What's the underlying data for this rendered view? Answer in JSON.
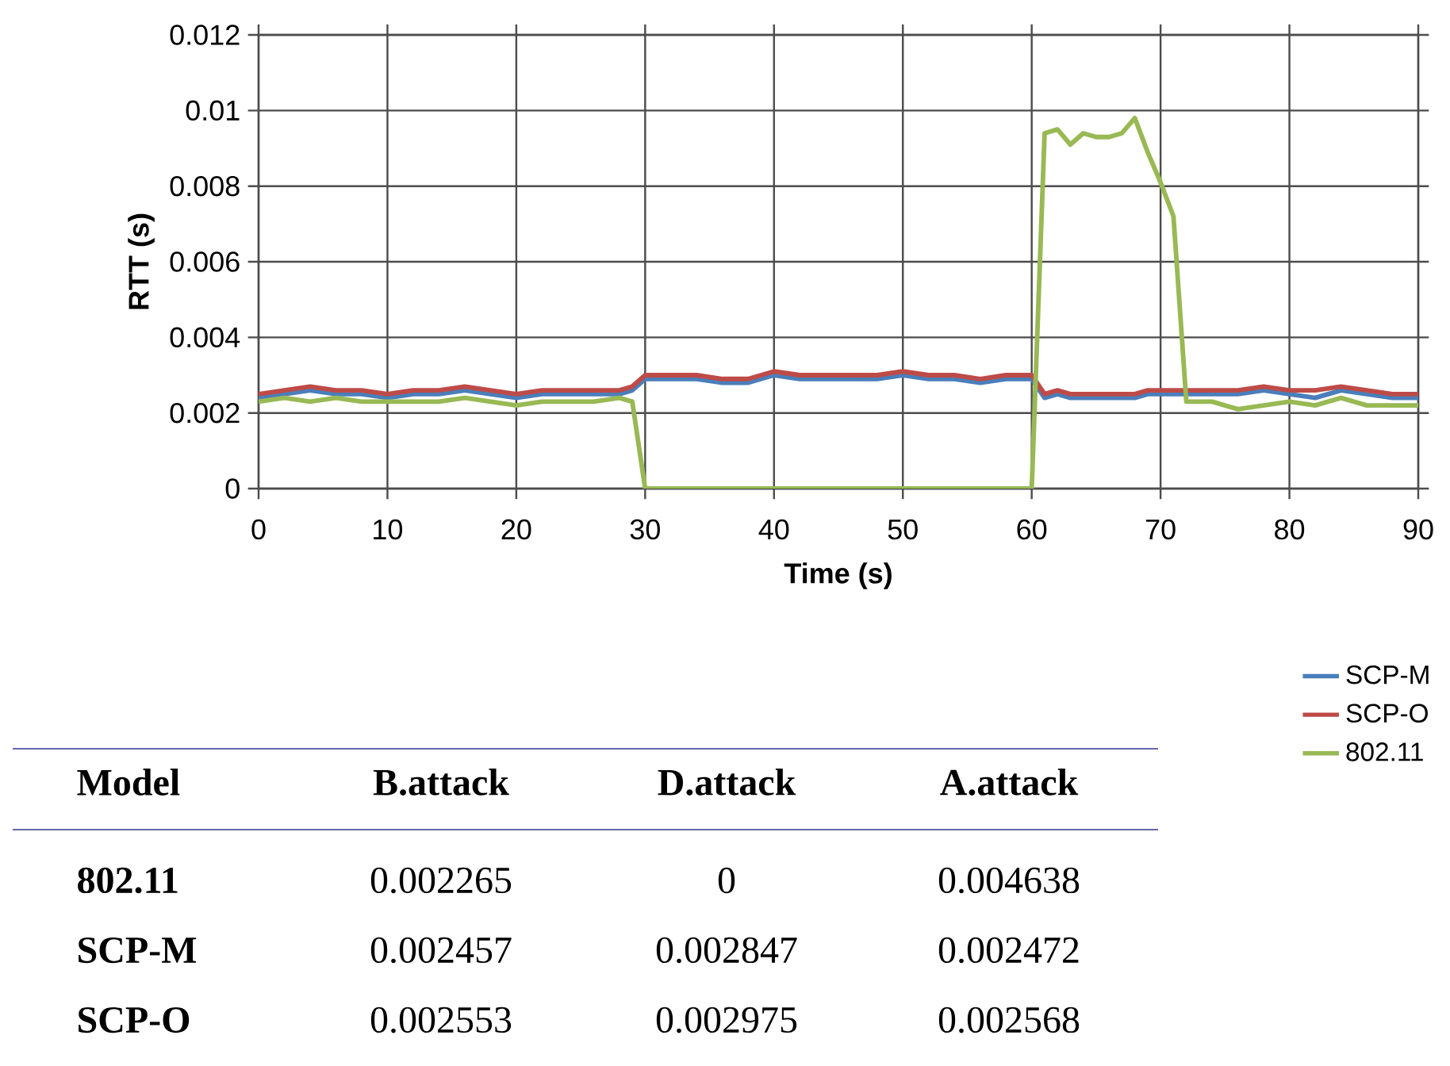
{
  "chart_data": [
    {
      "type": "line",
      "xlabel": "Time (s)",
      "ylabel": "RTT (s)",
      "x": [
        0,
        2,
        4,
        6,
        8,
        10,
        12,
        14,
        16,
        18,
        20,
        22,
        24,
        26,
        28,
        29,
        30,
        32,
        34,
        36,
        38,
        40,
        42,
        44,
        46,
        48,
        50,
        52,
        54,
        56,
        58,
        60,
        61,
        62,
        63,
        64,
        65,
        66,
        67,
        68,
        69,
        70,
        71,
        72,
        74,
        76,
        78,
        80,
        82,
        84,
        86,
        88,
        90
      ],
      "series": [
        {
          "name": "SCP-M",
          "color": "#4a7ebb",
          "values": [
            0.0024,
            0.0025,
            0.0026,
            0.0025,
            0.0025,
            0.0024,
            0.0025,
            0.0025,
            0.0026,
            0.0025,
            0.0024,
            0.0025,
            0.0025,
            0.0025,
            0.0025,
            0.0026,
            0.0029,
            0.0029,
            0.0029,
            0.0028,
            0.0028,
            0.003,
            0.0029,
            0.0029,
            0.0029,
            0.0029,
            0.003,
            0.0029,
            0.0029,
            0.0028,
            0.0029,
            0.0029,
            0.0024,
            0.0025,
            0.0024,
            0.0024,
            0.0024,
            0.0024,
            0.0024,
            0.0024,
            0.0025,
            0.0025,
            0.0025,
            0.0025,
            0.0025,
            0.0025,
            0.0026,
            0.0025,
            0.0024,
            0.0026,
            0.0025,
            0.0024,
            0.0024
          ]
        },
        {
          "name": "SCP-O",
          "color": "#be4b48",
          "values": [
            0.0025,
            0.0026,
            0.0027,
            0.0026,
            0.0026,
            0.0025,
            0.0026,
            0.0026,
            0.0027,
            0.0026,
            0.0025,
            0.0026,
            0.0026,
            0.0026,
            0.0026,
            0.0027,
            0.003,
            0.003,
            0.003,
            0.0029,
            0.0029,
            0.0031,
            0.003,
            0.003,
            0.003,
            0.003,
            0.0031,
            0.003,
            0.003,
            0.0029,
            0.003,
            0.003,
            0.0025,
            0.0026,
            0.0025,
            0.0025,
            0.0025,
            0.0025,
            0.0025,
            0.0025,
            0.0026,
            0.0026,
            0.0026,
            0.0026,
            0.0026,
            0.0026,
            0.0027,
            0.0026,
            0.0026,
            0.0027,
            0.0026,
            0.0025,
            0.0025
          ]
        },
        {
          "name": "802.11",
          "color": "#98b954",
          "values": [
            0.0023,
            0.0024,
            0.0023,
            0.0024,
            0.0023,
            0.0023,
            0.0023,
            0.0023,
            0.0024,
            0.0023,
            0.0022,
            0.0023,
            0.0023,
            0.0023,
            0.0024,
            0.0023,
            0,
            0,
            0,
            0,
            0,
            0,
            0,
            0,
            0,
            0,
            0,
            0,
            0,
            0,
            0,
            0,
            0.0094,
            0.0095,
            0.0091,
            0.0094,
            0.0093,
            0.0093,
            0.0094,
            0.0098,
            0.0089,
            0.0081,
            0.0072,
            0.0023,
            0.0023,
            0.0021,
            0.0022,
            0.0023,
            0.0022,
            0.0024,
            0.0022,
            0.0022,
            0.0022
          ]
        }
      ],
      "xlim": [
        0,
        90
      ],
      "xticks": [
        0,
        10,
        20,
        30,
        40,
        50,
        60,
        70,
        80,
        90
      ],
      "ylim": [
        0,
        0.012
      ],
      "yticks": [
        0,
        0.002,
        0.004,
        0.006,
        0.008,
        0.01,
        0.012
      ],
      "grid": true,
      "legend": "bottom right",
      "marker": "none",
      "line_style": "solid"
    },
    {
      "type": "other",
      "annotations": [
        "Model",
        "B.attack",
        "D.attack",
        "A.attack",
        "802.11",
        "0.002265",
        "0",
        "0.004638",
        "SCP-M",
        "0.002457",
        "0.002847",
        "0.002472",
        "SCP-O",
        "0.002553",
        "0.002975",
        "0.002568"
      ]
    }
  ]
}
